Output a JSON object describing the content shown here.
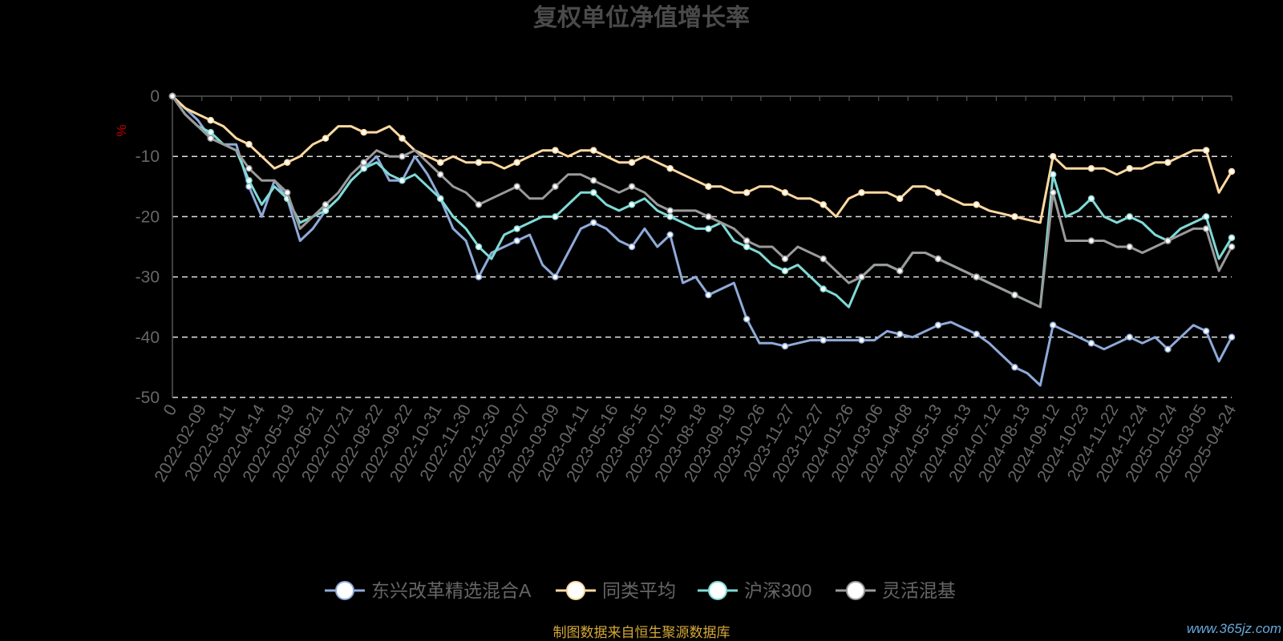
{
  "chart_data": {
    "type": "line",
    "title": "复权单位净值增长率",
    "ylabel": "%",
    "ylim": [
      -50,
      0
    ],
    "yticks": [
      0,
      -10,
      -20,
      -30,
      -40,
      -50
    ],
    "x_tick_labels": [
      "0",
      "2022-02-09",
      "2022-03-11",
      "2022-04-14",
      "2022-05-19",
      "2022-06-21",
      "2022-07-21",
      "2022-08-22",
      "2022-09-22",
      "2022-10-31",
      "2022-11-30",
      "2022-12-30",
      "2023-02-07",
      "2023-03-09",
      "2023-04-11",
      "2023-05-16",
      "2023-06-15",
      "2023-07-19",
      "2023-08-18",
      "2023-09-19",
      "2023-10-26",
      "2023-11-27",
      "2023-12-27",
      "2024-01-26",
      "2024-03-06",
      "2024-04-08",
      "2024-05-13",
      "2024-06-13",
      "2024-07-12",
      "2024-08-13",
      "2024-09-12",
      "2024-10-23",
      "2024-11-22",
      "2024-12-24",
      "2025-01-24",
      "2025-03-05",
      "2025-04-24"
    ],
    "grid": true,
    "legend_position": "bottom",
    "series": [
      {
        "name": "东兴改革精选混合A",
        "color": "#8eaad9",
        "values": [
          0,
          -2,
          -4,
          -7,
          -8,
          -8,
          -15,
          -20,
          -14,
          -17,
          -24,
          -22,
          -19,
          -17,
          -14,
          -12,
          -10,
          -14,
          -14,
          -10,
          -13,
          -17,
          -22,
          -24,
          -30,
          -26,
          -25,
          -24,
          -23,
          -28,
          -30,
          -26,
          -22,
          -21,
          -22,
          -24,
          -25,
          -22,
          -25,
          -23,
          -31,
          -30,
          -33,
          -32,
          -31,
          -37,
          -41,
          -41,
          -41.5,
          -41,
          -40.5,
          -40.5,
          -40.5,
          -40.5,
          -40.5,
          -40.5,
          -39,
          -39.5,
          -40,
          -39,
          -38,
          -37.5,
          -38.5,
          -39.5,
          -41,
          -43,
          -45,
          -46,
          -48,
          -38,
          -39,
          -40,
          -41,
          -42,
          -41,
          -40,
          -41,
          -40,
          -42,
          -40,
          -38,
          -39,
          -44,
          -40
        ]
      },
      {
        "name": "同类平均",
        "color": "#ffd9a0",
        "values": [
          0,
          -2,
          -3,
          -4,
          -5,
          -7,
          -8,
          -10,
          -12,
          -11,
          -10,
          -8,
          -7,
          -5,
          -5,
          -6,
          -6,
          -5,
          -7,
          -9,
          -10,
          -11,
          -10,
          -11,
          -11,
          -11,
          -12,
          -11,
          -10,
          -9,
          -9,
          -10,
          -9,
          -9,
          -10,
          -11,
          -11,
          -10,
          -11,
          -12,
          -13,
          -14,
          -15,
          -15,
          -16,
          -16,
          -15,
          -15,
          -16,
          -17,
          -17,
          -18,
          -20,
          -17,
          -16,
          -16,
          -16,
          -17,
          -15,
          -15,
          -16,
          -17,
          -18,
          -18,
          -19,
          -19.5,
          -20,
          -20.5,
          -21,
          -10,
          -12,
          -12,
          -12,
          -12,
          -13,
          -12,
          -12,
          -11,
          -11,
          -10,
          -9,
          -9,
          -16,
          -12.5
        ]
      },
      {
        "name": "沪深300",
        "color": "#7fdad6",
        "values": [
          0,
          -3,
          -5,
          -6,
          -8,
          -9,
          -14,
          -18,
          -15,
          -17,
          -21,
          -20,
          -19,
          -17,
          -14,
          -12,
          -11,
          -13,
          -14,
          -13,
          -15,
          -17,
          -20,
          -22,
          -25,
          -27,
          -23,
          -22,
          -21,
          -20,
          -20,
          -18,
          -16,
          -16,
          -18,
          -19,
          -18,
          -17,
          -19,
          -20,
          -21,
          -22,
          -22,
          -21,
          -24,
          -25,
          -26,
          -28,
          -29,
          -28,
          -30,
          -32,
          -33,
          -35,
          -30,
          -28,
          -28,
          -29,
          -26,
          -26,
          -27,
          -28,
          -29,
          -30,
          -31,
          -32,
          -33,
          -34,
          -35,
          -13,
          -20,
          -19,
          -17,
          -20,
          -21,
          -20,
          -21,
          -23,
          -24,
          -22,
          -21,
          -20,
          -27,
          -23.5
        ]
      },
      {
        "name": "灵活混基",
        "color": "#9a9a9a",
        "values": [
          0,
          -3,
          -5,
          -7,
          -8,
          -9,
          -12,
          -14,
          -14,
          -16,
          -22,
          -20,
          -18,
          -16,
          -13,
          -11,
          -9,
          -10,
          -10,
          -9,
          -11,
          -13,
          -15,
          -16,
          -18,
          -17,
          -16,
          -15,
          -17,
          -17,
          -15,
          -13,
          -13,
          -14,
          -15,
          -16,
          -15,
          -16,
          -18,
          -19,
          -19,
          -19,
          -20,
          -21,
          -22,
          -24,
          -25,
          -25,
          -27,
          -25,
          -26,
          -27,
          -29,
          -31,
          -30,
          -28,
          -28,
          -29,
          -26,
          -26,
          -27,
          -28,
          -29,
          -30,
          -31,
          -32,
          -33,
          -34,
          -35,
          -16,
          -24,
          -24,
          -24,
          -24,
          -25,
          -25,
          -26,
          -25,
          -24,
          -23,
          -22,
          -22,
          -29,
          -25
        ]
      }
    ],
    "source_note": "制图数据来自恒生聚源数据库",
    "watermark": "www.365jz.com"
  }
}
